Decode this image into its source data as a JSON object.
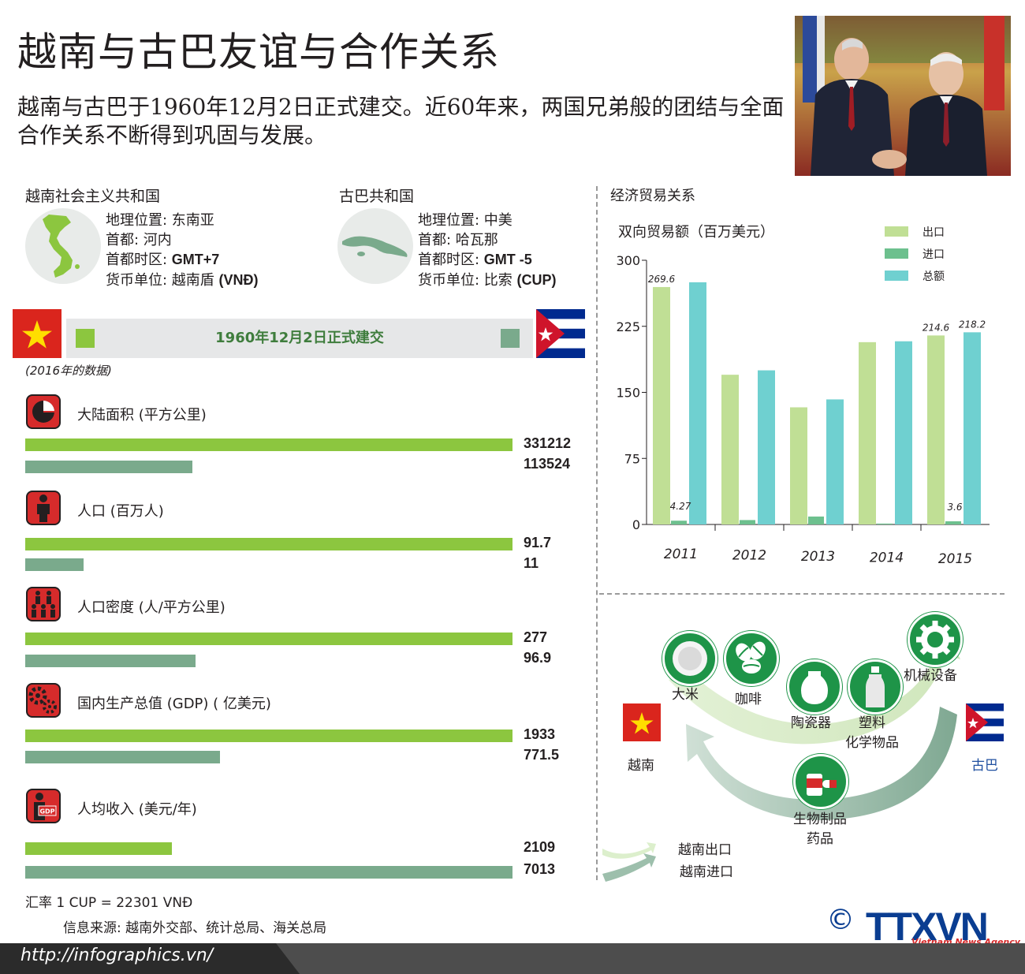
{
  "title": "越南与古巴友谊与合作关系",
  "intro": "越南与古巴于1960年12月2日正式建交。近60年来，两国兄弟般的团结与全面合作关系不断得到巩固与发展。",
  "vietnam": {
    "name": "越南社会主义共和国",
    "location": "地理位置: 东南亚",
    "capital": "首都: 河内",
    "timezone_label": "首都时区: ",
    "timezone": "GMT+7",
    "currency_label": "货币单位: 越南盾 ",
    "currency": "(VNĐ)",
    "flag_color": "#da251d"
  },
  "cuba": {
    "name": "古巴共和国",
    "location": "地理位置: 中美",
    "capital": "首都: 哈瓦那",
    "timezone_label": "首都时区: ",
    "timezone": "GMT -5",
    "currency_label": "货币单位: 比索 ",
    "currency": "(CUP)"
  },
  "ribbon_text": "1960年12月2日正式建交",
  "data_year_note": "(2016年的数据)",
  "colors": {
    "vietnam_bar": "#8cc63f",
    "cuba_bar": "#7aaa8c",
    "export": "#c0df95",
    "import": "#6dc08e",
    "total": "#6fd0d0",
    "icon_red": "#d62b2b"
  },
  "stats": [
    {
      "icon": "pie-chart-icon",
      "label": "大陆面积 (平方公里)",
      "vietnam": 331212,
      "cuba": 113524,
      "vietnam_text": "331212",
      "cuba_text": "113524"
    },
    {
      "icon": "person-icon",
      "label": "人口 (百万人)",
      "vietnam": 91.7,
      "cuba": 11,
      "vietnam_text": "91.7",
      "cuba_text": "11"
    },
    {
      "icon": "people-group-icon",
      "label": "人口密度 (人/平方公里)",
      "vietnam": 277,
      "cuba": 96.9,
      "vietnam_text": "277",
      "cuba_text": "96.9"
    },
    {
      "icon": "gears-icon",
      "label": "国内生产总值 (GDP) ( 亿美元)",
      "vietnam": 1933,
      "cuba": 771.5,
      "vietnam_text": "1933",
      "cuba_text": "771.5"
    },
    {
      "icon": "gdp-person-icon",
      "icon_text": "GDP",
      "label": "人均收入 (美元/年)",
      "vietnam": 2109,
      "cuba": 7013,
      "vietnam_text": "2109",
      "cuba_text": "7013"
    }
  ],
  "exchange_rate": "汇率 1 CUP = 22301 VNĐ",
  "source": "信息来源: 越南外交部、统计总局、海关总局",
  "trade_section_title": "经济贸易关系",
  "chart_data": {
    "type": "bar",
    "title": "双向贸易额（百万美元）",
    "categories": [
      "2011",
      "2012",
      "2013",
      "2014",
      "2015"
    ],
    "series": [
      {
        "name": "出口",
        "values": [
          269.6,
          170,
          133,
          207,
          214.6
        ]
      },
      {
        "name": "进口",
        "values": [
          4.27,
          5,
          9,
          1,
          3.6
        ]
      },
      {
        "name": "总额",
        "values": [
          275,
          175,
          142,
          208,
          218.2
        ]
      }
    ],
    "data_labels": [
      {
        "series": 0,
        "index": 0,
        "text": "269.6"
      },
      {
        "series": 1,
        "index": 0,
        "text": "4.27"
      },
      {
        "series": 0,
        "index": 4,
        "text": "214.6"
      },
      {
        "series": 2,
        "index": 4,
        "text": "218.2"
      },
      {
        "series": 1,
        "index": 4,
        "text": "3.6"
      }
    ],
    "yticks": [
      "0",
      "75",
      "150",
      "225",
      "300"
    ],
    "ylim": [
      0,
      300
    ],
    "legend_position": "top-right",
    "grid": false
  },
  "trade_products": {
    "export_items": [
      {
        "icon": "rice-icon",
        "label": "大米"
      },
      {
        "icon": "coffee-icon",
        "label": "咖啡"
      },
      {
        "icon": "ceramics-icon",
        "label": "陶瓷器"
      },
      {
        "icon": "plastic-bottle-icon",
        "label": "塑料",
        "label2": "化学物品"
      },
      {
        "icon": "gear-icon",
        "label": "机械设备"
      }
    ],
    "import_items": [
      {
        "icon": "medicine-icon",
        "label": "生物制品",
        "label2": "药品"
      }
    ],
    "vietnam_label": "越南",
    "cuba_label": "古巴",
    "legend_export": "越南出口",
    "legend_import": "越南进口"
  },
  "footer": {
    "url": "http://infographics.vn/",
    "logo": "TTXVN",
    "logo_sub": "Vietnam News Agency",
    "copyright": "©"
  }
}
